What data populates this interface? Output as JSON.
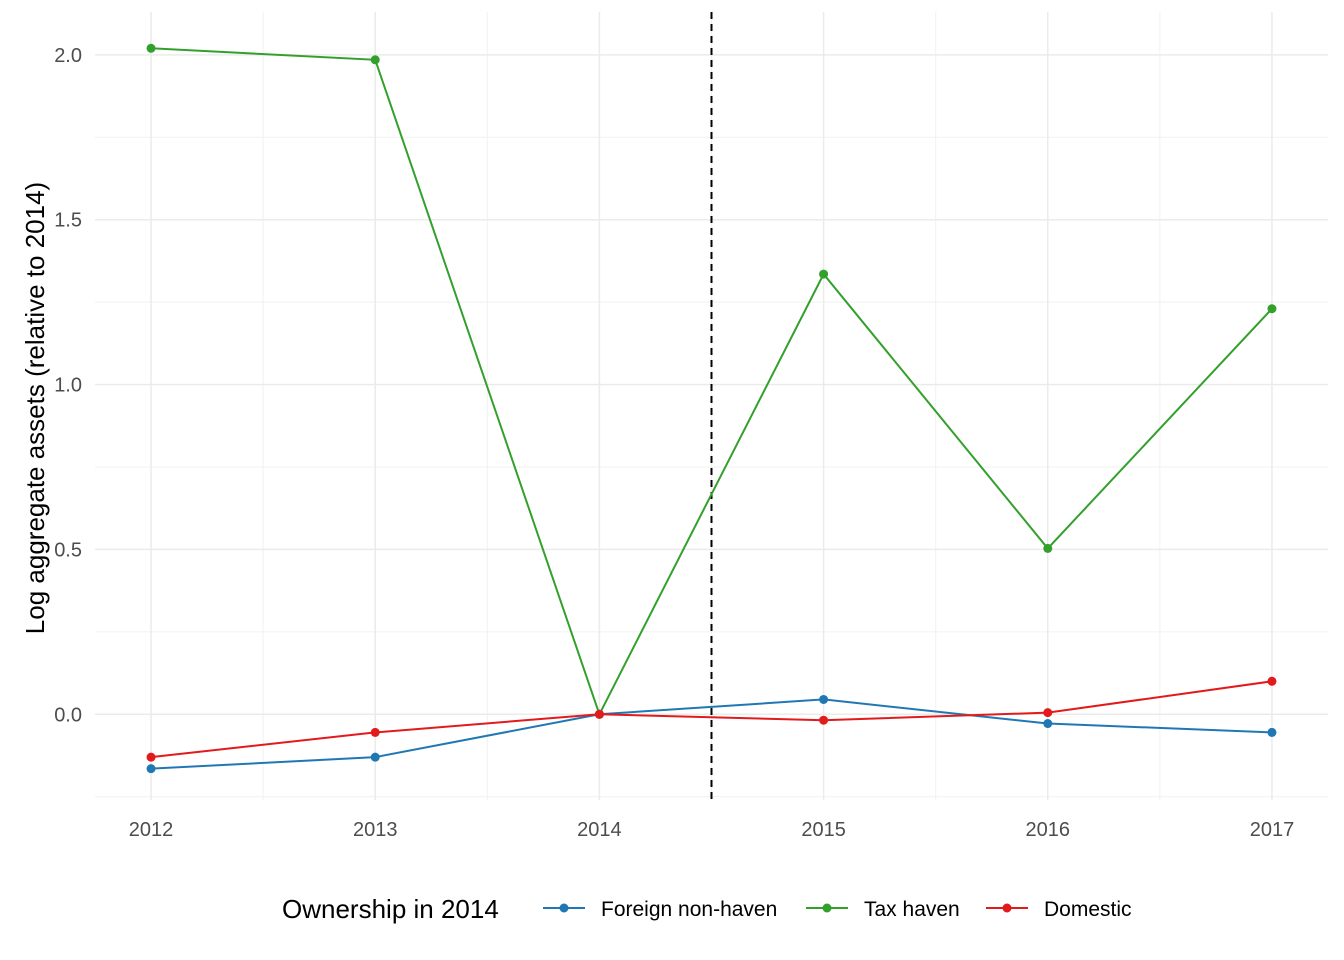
{
  "chart_data": {
    "type": "line",
    "title": "",
    "xlabel": "",
    "ylabel": "Log aggregate assets (relative to 2014)",
    "x": [
      "2012",
      "2013",
      "2014",
      "2015",
      "2016",
      "2017"
    ],
    "xlim": [
      2011.75,
      2017.25
    ],
    "ylim": [
      -0.26,
      2.13
    ],
    "y_ticks": [
      "0.0",
      "0.5",
      "1.0",
      "1.5",
      "2.0"
    ],
    "grid": true,
    "reference_line": {
      "x": 2014.5,
      "style": "dashed"
    },
    "legend": {
      "title": "Ownership in 2014",
      "position": "bottom"
    },
    "series": [
      {
        "name": "Foreign non-haven",
        "color": "#1f78b4",
        "values": [
          -0.165,
          -0.13,
          0.0,
          0.045,
          -0.028,
          -0.055
        ]
      },
      {
        "name": "Tax haven",
        "color": "#33a02c",
        "values": [
          2.02,
          1.985,
          0.0,
          1.335,
          0.503,
          1.23
        ]
      },
      {
        "name": "Domestic",
        "color": "#e31a1c",
        "values": [
          -0.13,
          -0.055,
          0.0,
          -0.018,
          0.005,
          0.1
        ]
      }
    ]
  }
}
